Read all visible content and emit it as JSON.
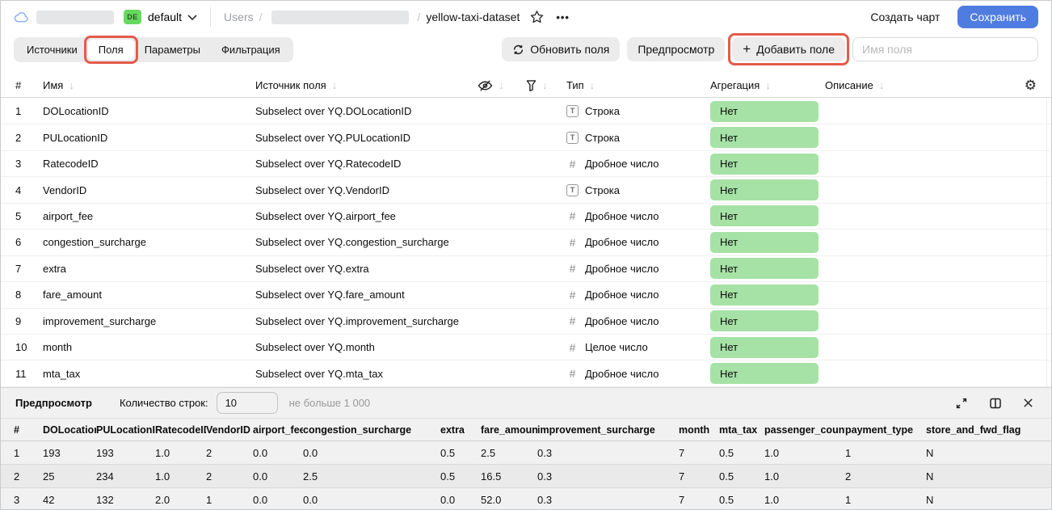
{
  "topbar": {
    "folder_badge": "DE",
    "folder_name": "default",
    "breadcrumb_root": "Users",
    "separator": "/",
    "dataset_name": "yellow-taxi-dataset",
    "more_icon": "•••",
    "create_chart_label": "Создать чарт",
    "save_label": "Сохранить"
  },
  "tabs": {
    "items": [
      {
        "label": "Источники",
        "active": false
      },
      {
        "label": "Поля",
        "active": true,
        "annotated": true
      },
      {
        "label": "Параметры",
        "active": false
      },
      {
        "label": "Фильтрация",
        "active": false
      }
    ]
  },
  "toolbar": {
    "refresh_button": "Обновить поля",
    "preview_button": "Предпросмотр",
    "add_field_plus": "+",
    "add_field_button": "Добавить поле",
    "name_input_placeholder": "Имя поля"
  },
  "icons": {
    "gear": "⚙",
    "sort_arrow": "↓"
  },
  "fields_table": {
    "headers": {
      "num": "#",
      "name": "Имя",
      "source": "Источник поля",
      "type": "Тип",
      "aggregation": "Агрегация",
      "description": "Описание"
    },
    "string_icon": "T",
    "number_icon": "#",
    "rows": [
      {
        "num": "1",
        "name": "DOLocationID",
        "source": "Subselect over YQ.DOLocationID",
        "kind": "string",
        "type": "Строка",
        "aggregation": "Нет"
      },
      {
        "num": "2",
        "name": "PULocationID",
        "source": "Subselect over YQ.PULocationID",
        "kind": "string",
        "type": "Строка",
        "aggregation": "Нет"
      },
      {
        "num": "3",
        "name": "RatecodeID",
        "source": "Subselect over YQ.RatecodeID",
        "kind": "number",
        "type": "Дробное число",
        "aggregation": "Нет"
      },
      {
        "num": "4",
        "name": "VendorID",
        "source": "Subselect over YQ.VendorID",
        "kind": "string",
        "type": "Строка",
        "aggregation": "Нет"
      },
      {
        "num": "5",
        "name": "airport_fee",
        "source": "Subselect over YQ.airport_fee",
        "kind": "number",
        "type": "Дробное число",
        "aggregation": "Нет"
      },
      {
        "num": "6",
        "name": "congestion_surcharge",
        "source": "Subselect over YQ.congestion_surcharge",
        "kind": "number",
        "type": "Дробное число",
        "aggregation": "Нет"
      },
      {
        "num": "7",
        "name": "extra",
        "source": "Subselect over YQ.extra",
        "kind": "number",
        "type": "Дробное число",
        "aggregation": "Нет"
      },
      {
        "num": "8",
        "name": "fare_amount",
        "source": "Subselect over YQ.fare_amount",
        "kind": "number",
        "type": "Дробное число",
        "aggregation": "Нет"
      },
      {
        "num": "9",
        "name": "improvement_surcharge",
        "source": "Subselect over YQ.improvement_surcharge",
        "kind": "number",
        "type": "Дробное число",
        "aggregation": "Нет"
      },
      {
        "num": "10",
        "name": "month",
        "source": "Subselect over YQ.month",
        "kind": "number",
        "type": "Целое число",
        "aggregation": "Нет"
      },
      {
        "num": "11",
        "name": "mta_tax",
        "source": "Subselect over YQ.mta_tax",
        "kind": "number",
        "type": "Дробное число",
        "aggregation": "Нет"
      }
    ]
  },
  "preview": {
    "title": "Предпросмотр",
    "rows_label": "Количество строк:",
    "rows_value": "10",
    "rows_hint": "не больше 1 000",
    "columns": [
      "#",
      "DOLocationID",
      "PULocationID",
      "RatecodeID",
      "VendorID",
      "airport_fee",
      "congestion_surcharge",
      "extra",
      "fare_amount",
      "improvement_surcharge",
      "month",
      "mta_tax",
      "passenger_count",
      "payment_type",
      "store_and_fwd_flag"
    ],
    "rows": [
      [
        "1",
        "193",
        "193",
        "1.0",
        "2",
        "0.0",
        "0.0",
        "0.5",
        "2.5",
        "0.3",
        "7",
        "0.5",
        "1.0",
        "1",
        "N"
      ],
      [
        "2",
        "25",
        "234",
        "1.0",
        "2",
        "0.0",
        "2.5",
        "0.5",
        "16.5",
        "0.3",
        "7",
        "0.5",
        "1.0",
        "2",
        "N"
      ],
      [
        "3",
        "42",
        "132",
        "2.0",
        "1",
        "0.0",
        "0.0",
        "0.0",
        "52.0",
        "0.3",
        "7",
        "0.5",
        "1.0",
        "1",
        "N"
      ]
    ]
  },
  "colors": {
    "accent_blue": "#4f7ce0",
    "badge_green": "#67d95f",
    "aggregation_pill_green": "#a6e2a5",
    "annotation_red": "#e35b4b"
  }
}
